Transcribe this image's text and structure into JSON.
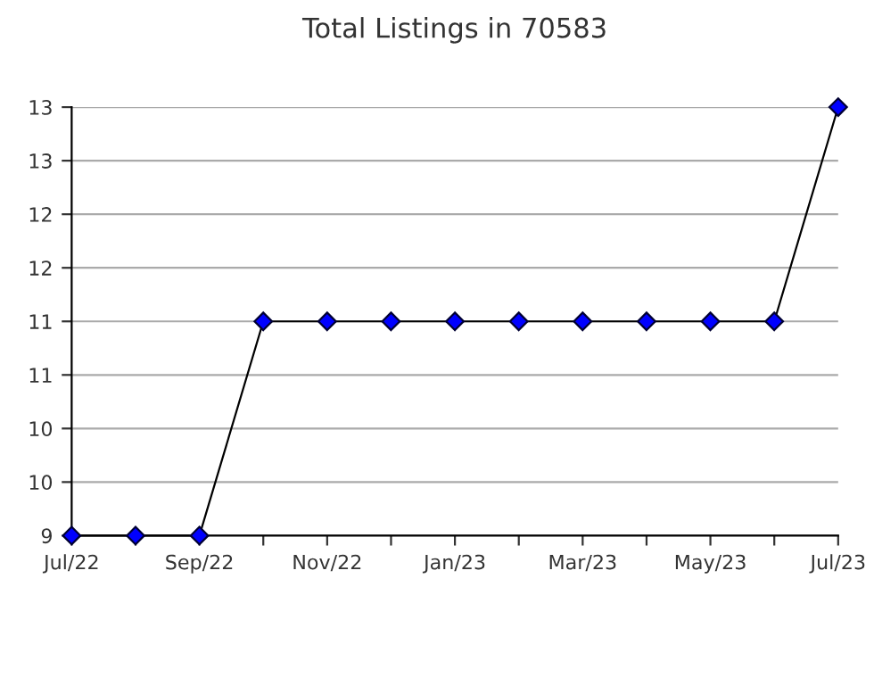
{
  "chart_data": {
    "type": "line",
    "title": "Total Listings in 70583",
    "categories": [
      "Jul/22",
      null,
      "Sep/22",
      null,
      "Nov/22",
      null,
      "Jan/23",
      null,
      "Mar/23",
      null,
      "May/23",
      null,
      "Jul/23"
    ],
    "series": [
      {
        "color": "#0000ff",
        "values": [
          9,
          9,
          9,
          11,
          11,
          11,
          11,
          11,
          11,
          11,
          11,
          11,
          13
        ]
      }
    ],
    "ylim": [
      9,
      13
    ],
    "yticks": [
      9,
      {
        "value": 9.5,
        "label": "10"
      },
      10,
      {
        "value": 10.5,
        "label": "11"
      },
      11,
      {
        "value": 11.5,
        "label": "12"
      },
      12,
      {
        "value": 12.5,
        "label": "13"
      },
      13
    ],
    "grid": "y",
    "marker": "diamond",
    "line_style": "solid"
  }
}
